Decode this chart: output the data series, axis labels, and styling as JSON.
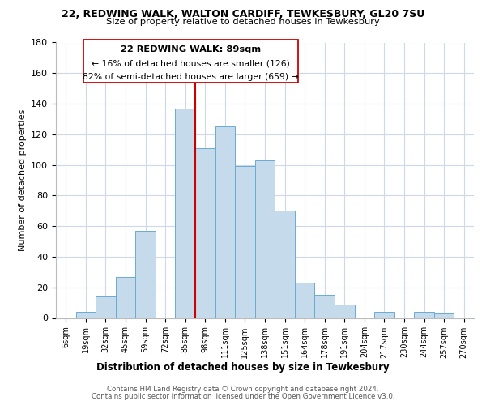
{
  "title": "22, REDWING WALK, WALTON CARDIFF, TEWKESBURY, GL20 7SU",
  "subtitle": "Size of property relative to detached houses in Tewkesbury",
  "xlabel": "Distribution of detached houses by size in Tewkesbury",
  "ylabel": "Number of detached properties",
  "bar_labels": [
    "6sqm",
    "19sqm",
    "32sqm",
    "45sqm",
    "59sqm",
    "72sqm",
    "85sqm",
    "98sqm",
    "111sqm",
    "125sqm",
    "138sqm",
    "151sqm",
    "164sqm",
    "178sqm",
    "191sqm",
    "204sqm",
    "217sqm",
    "230sqm",
    "244sqm",
    "257sqm",
    "270sqm"
  ],
  "bar_values": [
    0,
    4,
    14,
    27,
    57,
    0,
    137,
    111,
    125,
    99,
    103,
    70,
    23,
    15,
    9,
    0,
    4,
    0,
    4,
    3,
    0
  ],
  "bar_color": "#c5daea",
  "bar_edge_color": "#6aaad4",
  "vline_x_index": 6,
  "vline_color": "#cc0000",
  "ylim": [
    0,
    180
  ],
  "yticks": [
    0,
    20,
    40,
    60,
    80,
    100,
    120,
    140,
    160,
    180
  ],
  "annotation_title": "22 REDWING WALK: 89sqm",
  "annotation_line1": "← 16% of detached houses are smaller (126)",
  "annotation_line2": "82% of semi-detached houses are larger (659) →",
  "annotation_box_color": "#ffffff",
  "annotation_box_edge": "#cc0000",
  "footer1": "Contains HM Land Registry data © Crown copyright and database right 2024.",
  "footer2": "Contains public sector information licensed under the Open Government Licence v3.0.",
  "background_color": "#ffffff",
  "grid_color": "#ccd9e8"
}
